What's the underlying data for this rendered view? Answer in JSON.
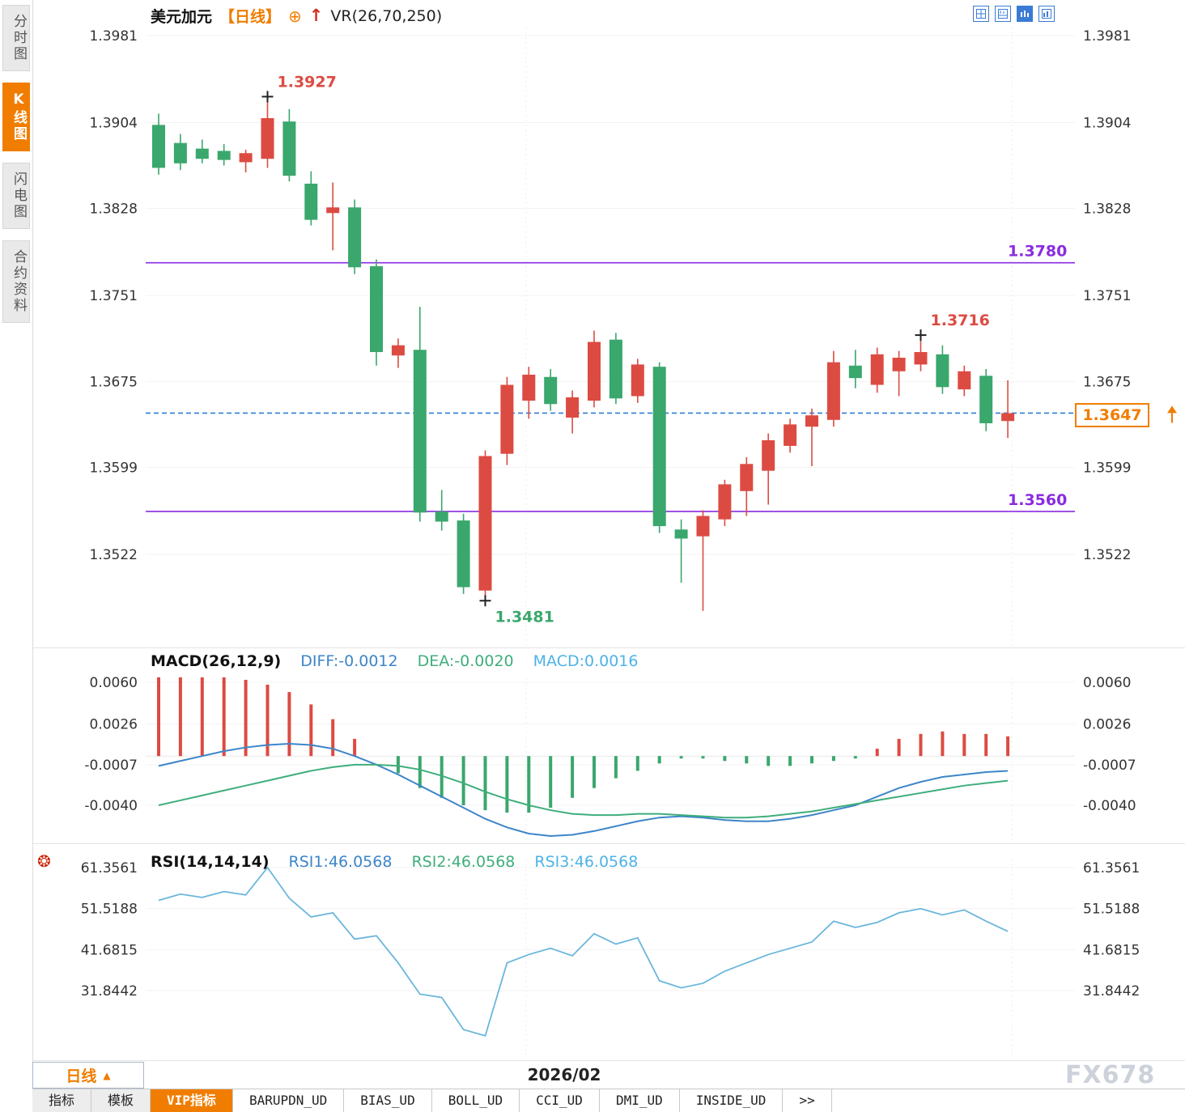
{
  "sidebar": {
    "tabs": [
      {
        "label": "分时图",
        "active": false
      },
      {
        "label": "K线图",
        "active": true
      },
      {
        "label": "闪电图",
        "active": false
      },
      {
        "label": "合约资料",
        "active": false
      }
    ]
  },
  "header": {
    "symbol": "美元加元",
    "period": "【日线】",
    "indicator": "VR(26,70,250)"
  },
  "icons": {
    "add_indicator": "⊕",
    "trend_arrow": "↑",
    "caret_up": "▲",
    "rsi_marker": "❂"
  },
  "price_panel": {
    "resistance_label": "1.3780",
    "support_label": "1.3560",
    "last_price_label": "1.3647",
    "high_annotation": "1.3927",
    "low_annotation": "1.3481",
    "swing_annotation": "1.3716"
  },
  "macd_panel": {
    "title": "MACD(26,12,9)",
    "diff_label": "DIFF:-0.0012",
    "dea_label": "DEA:-0.0020",
    "macd_label": "MACD:0.0016"
  },
  "rsi_panel": {
    "title": "RSI(14,14,14)",
    "rsi1_label": "RSI1:46.0568",
    "rsi2_label": "RSI2:46.0568",
    "rsi3_label": "RSI3:46.0568"
  },
  "footer": {
    "period_button": "日线",
    "date_label": "2026/02",
    "watermark": "FX678"
  },
  "bottom_tabs": [
    {
      "label": "指标",
      "active": false
    },
    {
      "label": "模板",
      "active": false
    },
    {
      "label": "VIP指标",
      "active": true
    },
    {
      "label": "BARUPDN_UD",
      "active": false
    },
    {
      "label": "BIAS_UD",
      "active": false
    },
    {
      "label": "BOLL_UD",
      "active": false
    },
    {
      "label": "CCI_UD",
      "active": false
    },
    {
      "label": "DMI_UD",
      "active": false
    },
    {
      "label": "INSIDE_UD",
      "active": false
    },
    {
      "label": ">>",
      "active": false
    }
  ],
  "colors": {
    "up": "#dc4b42",
    "down": "#3aa76d",
    "level": "#8a2be2",
    "last_price_line": "#2f7ed8",
    "accent_orange": "#f07d00",
    "diff_line": "#3d85c8",
    "dea_line": "#3fae7c",
    "rsi_line": "#6ab6dd"
  },
  "chart_data": [
    {
      "type": "candlestick",
      "title": "美元加元 日线",
      "x_label": "2026/02",
      "y_ticks": [
        1.3981,
        1.3904,
        1.3828,
        1.3751,
        1.3675,
        1.3599,
        1.3522
      ],
      "ylim": [
        1.344,
        1.3991
      ],
      "levels": [
        {
          "value": 1.378,
          "label": "1.3780"
        },
        {
          "value": 1.356,
          "label": "1.3560"
        }
      ],
      "last_price": {
        "value": 1.3647,
        "label": "1.3647"
      },
      "annotations": [
        {
          "index": 5,
          "price": 1.3927,
          "label": "1.3927",
          "kind": "high"
        },
        {
          "index": 15,
          "price": 1.3481,
          "label": "1.3481",
          "kind": "low"
        },
        {
          "index": 35,
          "price": 1.3716,
          "label": "1.3716",
          "kind": "high"
        }
      ],
      "ohlc": [
        [
          1.3902,
          1.3912,
          1.3858,
          1.3864
        ],
        [
          1.3886,
          1.3894,
          1.3862,
          1.3868
        ],
        [
          1.3881,
          1.3889,
          1.3868,
          1.3872
        ],
        [
          1.3879,
          1.3885,
          1.3866,
          1.3871
        ],
        [
          1.3869,
          1.388,
          1.386,
          1.3877
        ],
        [
          1.3872,
          1.3927,
          1.3864,
          1.3908
        ],
        [
          1.3905,
          1.3916,
          1.3852,
          1.3857
        ],
        [
          1.385,
          1.3861,
          1.3813,
          1.3818
        ],
        [
          1.3824,
          1.3851,
          1.3791,
          1.3829
        ],
        [
          1.3829,
          1.3836,
          1.377,
          1.3776
        ],
        [
          1.3777,
          1.3783,
          1.3689,
          1.3701
        ],
        [
          1.3698,
          1.3713,
          1.3687,
          1.3707
        ],
        [
          1.3703,
          1.3741,
          1.3551,
          1.3559
        ],
        [
          1.356,
          1.3579,
          1.3543,
          1.3551
        ],
        [
          1.3552,
          1.3558,
          1.3487,
          1.3493
        ],
        [
          1.349,
          1.3614,
          1.3481,
          1.3609
        ],
        [
          1.3611,
          1.3679,
          1.3601,
          1.3672
        ],
        [
          1.3658,
          1.3688,
          1.3642,
          1.3681
        ],
        [
          1.3679,
          1.3686,
          1.3649,
          1.3655
        ],
        [
          1.3643,
          1.3667,
          1.3629,
          1.3661
        ],
        [
          1.3658,
          1.372,
          1.3652,
          1.371
        ],
        [
          1.3712,
          1.3718,
          1.3655,
          1.366
        ],
        [
          1.3662,
          1.3695,
          1.3656,
          1.369
        ],
        [
          1.3688,
          1.3692,
          1.3541,
          1.3547
        ],
        [
          1.3544,
          1.3553,
          1.3497,
          1.3536
        ],
        [
          1.3538,
          1.3561,
          1.3472,
          1.3556
        ],
        [
          1.3553,
          1.3588,
          1.3547,
          1.3584
        ],
        [
          1.3578,
          1.3608,
          1.3556,
          1.3602
        ],
        [
          1.3596,
          1.3629,
          1.3566,
          1.3623
        ],
        [
          1.3618,
          1.3642,
          1.3612,
          1.3637
        ],
        [
          1.3635,
          1.3651,
          1.36,
          1.3645
        ],
        [
          1.3641,
          1.3702,
          1.3635,
          1.3692
        ],
        [
          1.3689,
          1.3703,
          1.3669,
          1.3678
        ],
        [
          1.3672,
          1.3705,
          1.3665,
          1.3699
        ],
        [
          1.3684,
          1.3702,
          1.3662,
          1.3696
        ],
        [
          1.369,
          1.3716,
          1.3684,
          1.3701
        ],
        [
          1.3699,
          1.3707,
          1.3664,
          1.367
        ],
        [
          1.3668,
          1.3689,
          1.3662,
          1.3684
        ],
        [
          1.368,
          1.3686,
          1.3631,
          1.3638
        ],
        [
          1.364,
          1.3676,
          1.3625,
          1.3647
        ]
      ]
    },
    {
      "type": "bar",
      "title": "MACD(26,12,9)",
      "y_ticks": [
        0.006,
        0.0026,
        -0.0007,
        -0.004
      ],
      "ylim": [
        -0.007,
        0.0061
      ],
      "readout": {
        "DIFF": -0.0012,
        "DEA": -0.002,
        "MACD": 0.0016
      },
      "series": [
        {
          "name": "DIFF",
          "values": [
            -0.0008,
            -0.0004,
            0.0,
            0.0004,
            0.0007,
            0.0009,
            0.001,
            0.0009,
            0.0006,
            0.0,
            -0.0007,
            -0.0015,
            -0.0024,
            -0.0033,
            -0.0042,
            -0.0051,
            -0.0058,
            -0.0063,
            -0.0065,
            -0.0064,
            -0.0061,
            -0.0057,
            -0.0053,
            -0.005,
            -0.0049,
            -0.005,
            -0.0052,
            -0.0053,
            -0.0053,
            -0.0051,
            -0.0048,
            -0.0044,
            -0.004,
            -0.0033,
            -0.0026,
            -0.0021,
            -0.0017,
            -0.0015,
            -0.0013,
            -0.0012
          ]
        },
        {
          "name": "DEA",
          "values": [
            -0.004,
            -0.0036,
            -0.0032,
            -0.0028,
            -0.0024,
            -0.002,
            -0.0016,
            -0.0012,
            -0.0009,
            -0.0007,
            -0.0007,
            -0.0008,
            -0.0011,
            -0.0016,
            -0.0022,
            -0.0029,
            -0.0035,
            -0.004,
            -0.0044,
            -0.0047,
            -0.0048,
            -0.0048,
            -0.0047,
            -0.0047,
            -0.0048,
            -0.0049,
            -0.005,
            -0.005,
            -0.0049,
            -0.0047,
            -0.0045,
            -0.0042,
            -0.0039,
            -0.0036,
            -0.0033,
            -0.003,
            -0.0027,
            -0.0024,
            -0.0022,
            -0.002
          ]
        },
        {
          "name": "MACD",
          "values": [
            0.0064,
            0.0064,
            0.0064,
            0.0064,
            0.0062,
            0.0058,
            0.0052,
            0.0042,
            0.003,
            0.0014,
            0.0,
            -0.0014,
            -0.0026,
            -0.0034,
            -0.004,
            -0.0044,
            -0.0046,
            -0.0046,
            -0.0042,
            -0.0034,
            -0.0026,
            -0.0018,
            -0.0012,
            -0.0006,
            -0.0002,
            -0.0002,
            -0.0004,
            -0.0006,
            -0.0008,
            -0.0008,
            -0.0006,
            -0.0004,
            -0.0002,
            0.0006,
            0.0014,
            0.0018,
            0.002,
            0.0018,
            0.0018,
            0.0016
          ]
        }
      ]
    },
    {
      "type": "line",
      "title": "RSI(14,14,14)",
      "y_ticks": [
        61.3561,
        51.5188,
        41.6815,
        31.8442
      ],
      "ylim": [
        16.2,
        63.7
      ],
      "readout": {
        "RSI1": 46.0568,
        "RSI2": 46.0568,
        "RSI3": 46.0568
      },
      "series": [
        {
          "name": "RSI",
          "values": [
            53.5,
            55.0,
            54.2,
            55.6,
            54.8,
            61.36,
            54.0,
            49.5,
            50.5,
            44.2,
            45.0,
            38.5,
            31.0,
            30.2,
            22.5,
            21.0,
            38.5,
            40.5,
            42.0,
            40.2,
            45.5,
            43.0,
            44.5,
            34.2,
            32.5,
            33.6,
            36.5,
            38.5,
            40.5,
            42.0,
            43.5,
            48.5,
            47.0,
            48.2,
            50.5,
            51.5,
            50.0,
            51.2,
            48.5,
            46.0568
          ]
        }
      ]
    }
  ]
}
